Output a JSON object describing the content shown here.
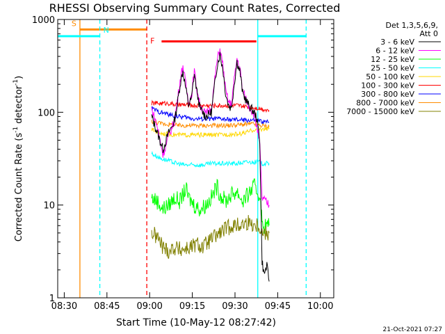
{
  "chart_data": {
    "type": "line",
    "title": "RHESSI Observing Summary Count Rates, Corrected",
    "xlabel": "Start Time (10-May-12 08:27:42)",
    "ylabel_main": "Corrected Count Rate (s",
    "ylabel_sup1": "-1",
    "ylabel_mid": " detector",
    "ylabel_sup2": "-1",
    "ylabel_end": ")",
    "yscale": "log",
    "ylim": [
      1,
      1000
    ],
    "xlim_minutes": [
      0,
      97
    ],
    "x_ticks": [
      {
        "minute": 2.3,
        "label": "08:30"
      },
      {
        "minute": 17.3,
        "label": "08:45"
      },
      {
        "minute": 32.3,
        "label": "09:00"
      },
      {
        "minute": 47.3,
        "label": "09:15"
      },
      {
        "minute": 62.3,
        "label": "09:30"
      },
      {
        "minute": 77.3,
        "label": "09:45"
      },
      {
        "minute": 92.3,
        "label": "10:00"
      }
    ],
    "y_ticks": [
      {
        "value": 1,
        "label": "1"
      },
      {
        "value": 10,
        "label": "10"
      },
      {
        "value": 100,
        "label": "100"
      },
      {
        "value": 1000,
        "label": "1000"
      }
    ],
    "legend_header": [
      "Det 1,3,5,6,9,",
      "Att 0"
    ],
    "legend_position": "top-right",
    "markers": [
      {
        "label": "S",
        "color": "#ff8c00",
        "minute": 7.8,
        "style": "solid",
        "bar_start": 7.8,
        "bar_end": 31.3,
        "level": 780
      },
      {
        "label": "N",
        "color": "#00ffff",
        "minute": 14.8,
        "style": "dashed",
        "bar_start": 0,
        "bar_end": 14.8,
        "level": 660
      },
      {
        "label": "F",
        "color": "#ff0000",
        "minute": 31.3,
        "style": "dashed",
        "bar_start": 36.5,
        "bar_end": 69.8,
        "level": 580
      },
      {
        "label": "",
        "color": "#00ffff",
        "minute": 70.3,
        "style": "solid",
        "bar_start": 70.3,
        "bar_end": 87.3,
        "level": 660
      },
      {
        "label": "",
        "color": "#00ffff",
        "minute": 87.3,
        "style": "dashed",
        "bar_start": null,
        "bar_end": null,
        "level": null
      }
    ],
    "data_start_minute": 33.0,
    "data_end_minute": 74.3,
    "series": [
      {
        "name": "3 - 6 keV",
        "color": "#000000",
        "points": [
          [
            33,
            90
          ],
          [
            35,
            60
          ],
          [
            37,
            40
          ],
          [
            39,
            60
          ],
          [
            41,
            80
          ],
          [
            42,
            120
          ],
          [
            43,
            200
          ],
          [
            44,
            280
          ],
          [
            45,
            180
          ],
          [
            46,
            120
          ],
          [
            47,
            140
          ],
          [
            48,
            260
          ],
          [
            49,
            160
          ],
          [
            50,
            110
          ],
          [
            52,
            90
          ],
          [
            54,
            100
          ],
          [
            56,
            320
          ],
          [
            57,
            420
          ],
          [
            58,
            300
          ],
          [
            59,
            160
          ],
          [
            60,
            120
          ],
          [
            61,
            110
          ],
          [
            62,
            200
          ],
          [
            63,
            350
          ],
          [
            64,
            280
          ],
          [
            65,
            160
          ],
          [
            67,
            120
          ],
          [
            69,
            100
          ],
          [
            70,
            85
          ],
          [
            71,
            50
          ],
          [
            71.8,
            2.5
          ],
          [
            72.5,
            1.8
          ],
          [
            73.5,
            2.2
          ],
          [
            74.3,
            1.5
          ]
        ]
      },
      {
        "name": "6 - 12 keV",
        "color": "#ff00ff",
        "points": [
          [
            33,
            110
          ],
          [
            35,
            70
          ],
          [
            37,
            35
          ],
          [
            39,
            55
          ],
          [
            41,
            80
          ],
          [
            42,
            130
          ],
          [
            43,
            220
          ],
          [
            44,
            320
          ],
          [
            45,
            200
          ],
          [
            46,
            130
          ],
          [
            47,
            150
          ],
          [
            48,
            280
          ],
          [
            49,
            170
          ],
          [
            50,
            120
          ],
          [
            52,
            95
          ],
          [
            54,
            110
          ],
          [
            56,
            360
          ],
          [
            57,
            480
          ],
          [
            58,
            330
          ],
          [
            59,
            170
          ],
          [
            60,
            130
          ],
          [
            61,
            120
          ],
          [
            62,
            220
          ],
          [
            63,
            380
          ],
          [
            64,
            300
          ],
          [
            65,
            170
          ],
          [
            67,
            120
          ],
          [
            69,
            95
          ],
          [
            70,
            70
          ],
          [
            71,
            45
          ],
          [
            71.8,
            12
          ],
          [
            73,
            11
          ],
          [
            74.3,
            10
          ]
        ]
      },
      {
        "name": "12 - 25 keV",
        "color": "#00ff00",
        "points": [
          [
            33,
            12
          ],
          [
            35,
            11
          ],
          [
            37,
            9
          ],
          [
            39,
            10
          ],
          [
            41,
            12
          ],
          [
            43,
            11
          ],
          [
            45,
            15
          ],
          [
            46,
            12
          ],
          [
            48,
            10
          ],
          [
            50,
            9
          ],
          [
            52,
            10
          ],
          [
            54,
            12
          ],
          [
            56,
            16
          ],
          [
            57,
            13
          ],
          [
            59,
            11
          ],
          [
            61,
            13
          ],
          [
            63,
            14
          ],
          [
            65,
            11
          ],
          [
            67,
            13
          ],
          [
            69,
            16
          ],
          [
            70,
            14
          ],
          [
            71.3,
            12
          ],
          [
            71.8,
            6
          ],
          [
            74.3,
            6
          ]
        ]
      },
      {
        "name": "25 - 50 keV",
        "color": "#00ffff",
        "points": [
          [
            33,
            36
          ],
          [
            36,
            32
          ],
          [
            39,
            30
          ],
          [
            42,
            28
          ],
          [
            45,
            27
          ],
          [
            48,
            27
          ],
          [
            51,
            27
          ],
          [
            54,
            28
          ],
          [
            57,
            28
          ],
          [
            60,
            28
          ],
          [
            63,
            28
          ],
          [
            66,
            29
          ],
          [
            69,
            29
          ],
          [
            71,
            29
          ],
          [
            71.8,
            28
          ],
          [
            74.3,
            28
          ]
        ]
      },
      {
        "name": "50 - 100 keV",
        "color": "#ffd700",
        "points": [
          [
            33,
            65
          ],
          [
            36,
            60
          ],
          [
            39,
            58
          ],
          [
            42,
            57
          ],
          [
            45,
            57
          ],
          [
            48,
            57
          ],
          [
            51,
            57
          ],
          [
            54,
            57
          ],
          [
            57,
            57
          ],
          [
            60,
            58
          ],
          [
            63,
            58
          ],
          [
            66,
            60
          ],
          [
            69,
            65
          ],
          [
            71,
            66
          ],
          [
            74.3,
            66
          ]
        ]
      },
      {
        "name": "100 - 300 keV",
        "color": "#ff0000",
        "points": [
          [
            33,
            125
          ],
          [
            36,
            125
          ],
          [
            39,
            125
          ],
          [
            42,
            120
          ],
          [
            45,
            120
          ],
          [
            48,
            118
          ],
          [
            51,
            118
          ],
          [
            54,
            118
          ],
          [
            57,
            118
          ],
          [
            60,
            118
          ],
          [
            63,
            118
          ],
          [
            66,
            115
          ],
          [
            69,
            112
          ],
          [
            71,
            110
          ],
          [
            74.3,
            105
          ]
        ]
      },
      {
        "name": "300 - 800 keV",
        "color": "#0000ff",
        "points": [
          [
            33,
            110
          ],
          [
            36,
            100
          ],
          [
            39,
            95
          ],
          [
            42,
            90
          ],
          [
            45,
            88
          ],
          [
            48,
            85
          ],
          [
            51,
            85
          ],
          [
            54,
            85
          ],
          [
            57,
            85
          ],
          [
            60,
            83
          ],
          [
            63,
            83
          ],
          [
            66,
            82
          ],
          [
            69,
            82
          ],
          [
            71,
            80
          ],
          [
            74.3,
            78
          ]
        ]
      },
      {
        "name": "800 - 7000 keV",
        "color": "#ff8c00",
        "points": [
          [
            33,
            80
          ],
          [
            36,
            76
          ],
          [
            39,
            74
          ],
          [
            42,
            72
          ],
          [
            45,
            72
          ],
          [
            48,
            72
          ],
          [
            51,
            72
          ],
          [
            54,
            72
          ],
          [
            57,
            72
          ],
          [
            60,
            72
          ],
          [
            63,
            73
          ],
          [
            66,
            74
          ],
          [
            69,
            75
          ],
          [
            71,
            72
          ],
          [
            74.3,
            70
          ]
        ]
      },
      {
        "name": "7000 - 15000 keV",
        "color": "#808000",
        "points": [
          [
            33,
            5
          ],
          [
            35,
            4.5
          ],
          [
            37,
            3.5
          ],
          [
            39,
            3.2
          ],
          [
            41,
            3.5
          ],
          [
            43,
            3.3
          ],
          [
            45,
            3.4
          ],
          [
            47,
            3.5
          ],
          [
            49,
            3.8
          ],
          [
            51,
            3.5
          ],
          [
            53,
            4
          ],
          [
            55,
            4.5
          ],
          [
            57,
            5
          ],
          [
            59,
            5.5
          ],
          [
            61,
            6
          ],
          [
            63,
            6
          ],
          [
            65,
            6.2
          ],
          [
            67,
            6.5
          ],
          [
            69,
            6.2
          ],
          [
            71,
            6
          ],
          [
            71.8,
            5
          ],
          [
            74.3,
            5
          ]
        ]
      }
    ],
    "footer_date": "21-Oct-2021 07:27"
  }
}
